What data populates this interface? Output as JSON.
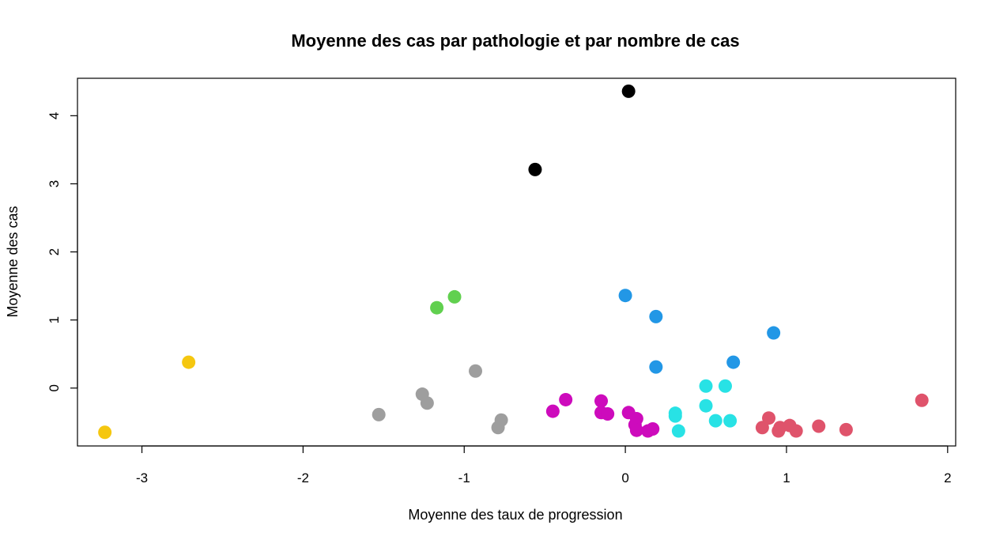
{
  "chart_data": {
    "type": "scatter",
    "title": "Moyenne des cas par pathologie et par nombre de cas",
    "xlabel": "Moyenne des taux de progression",
    "ylabel": "Moyenne des cas",
    "xlim": [
      -3.4,
      2.05
    ],
    "ylim": [
      -0.85,
      4.55
    ],
    "xticks": [
      -3,
      -2,
      -1,
      0,
      1,
      2
    ],
    "yticks": [
      0,
      1,
      2,
      3,
      4
    ],
    "grid": false,
    "legend": "none",
    "series": [
      {
        "color": "#000000",
        "points": [
          [
            0.02,
            4.36
          ],
          [
            -0.56,
            3.21
          ]
        ]
      },
      {
        "color": "#61D04F",
        "points": [
          [
            -1.06,
            1.34
          ],
          [
            -1.17,
            1.18
          ]
        ]
      },
      {
        "color": "#F5C710",
        "points": [
          [
            -2.71,
            0.38
          ],
          [
            -3.23,
            -0.65
          ]
        ]
      },
      {
        "color": "#9E9E9E",
        "points": [
          [
            -0.93,
            0.25
          ],
          [
            -1.26,
            -0.09
          ],
          [
            -1.23,
            -0.22
          ],
          [
            -1.53,
            -0.39
          ],
          [
            -0.77,
            -0.47
          ],
          [
            -0.79,
            -0.58
          ]
        ]
      },
      {
        "color": "#2297E6",
        "points": [
          [
            0.0,
            1.36
          ],
          [
            0.19,
            1.05
          ],
          [
            0.92,
            0.81
          ],
          [
            0.67,
            0.38
          ],
          [
            0.19,
            0.31
          ]
        ]
      },
      {
        "color": "#28E2E5",
        "points": [
          [
            0.5,
            0.03
          ],
          [
            0.62,
            0.03
          ],
          [
            0.5,
            -0.26
          ],
          [
            0.31,
            -0.37
          ],
          [
            0.31,
            -0.41
          ],
          [
            0.56,
            -0.48
          ],
          [
            0.65,
            -0.48
          ],
          [
            0.33,
            -0.63
          ]
        ]
      },
      {
        "color": "#CD0BBC",
        "points": [
          [
            -0.37,
            -0.17
          ],
          [
            -0.45,
            -0.34
          ],
          [
            -0.15,
            -0.19
          ],
          [
            -0.15,
            -0.36
          ],
          [
            -0.11,
            -0.38
          ],
          [
            0.02,
            -0.36
          ],
          [
            0.07,
            -0.45
          ],
          [
            0.06,
            -0.54
          ],
          [
            0.07,
            -0.62
          ],
          [
            0.14,
            -0.63
          ],
          [
            0.17,
            -0.6
          ]
        ]
      },
      {
        "color": "#DF536B",
        "points": [
          [
            1.84,
            -0.18
          ],
          [
            0.89,
            -0.44
          ],
          [
            0.85,
            -0.58
          ],
          [
            0.96,
            -0.58
          ],
          [
            1.02,
            -0.55
          ],
          [
            0.95,
            -0.63
          ],
          [
            1.06,
            -0.63
          ],
          [
            1.2,
            -0.56
          ],
          [
            1.37,
            -0.61
          ]
        ]
      }
    ]
  }
}
